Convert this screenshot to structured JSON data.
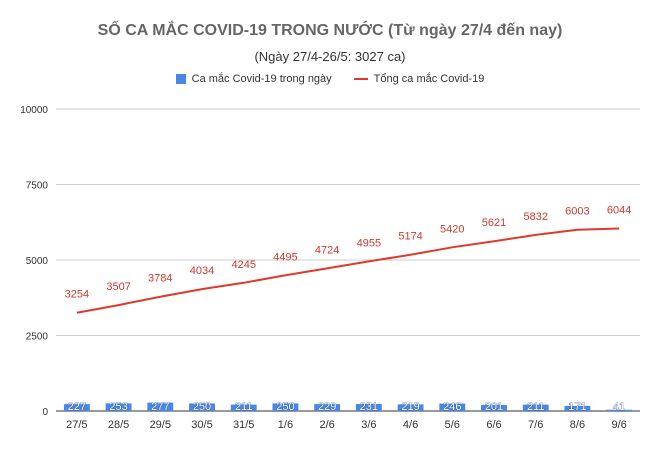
{
  "chart_data": {
    "type": "bar",
    "title": "SỐ CA MẮC COVID-19 TRONG NƯỚC (Từ ngày 27/4 đến nay)",
    "subtitle": "(Ngày 27/4-26/5: 3027 ca)",
    "categories": [
      "27/5",
      "28/5",
      "29/5",
      "30/5",
      "31/5",
      "1/6",
      "2/6",
      "3/6",
      "4/6",
      "5/6",
      "6/6",
      "7/6",
      "8/6",
      "9/6"
    ],
    "series": [
      {
        "name": "Ca mắc Covid-19 trong ngày",
        "type": "bar",
        "color": "#4a86e8",
        "values": [
          227,
          253,
          277,
          250,
          211,
          250,
          229,
          231,
          219,
          246,
          201,
          211,
          171,
          41
        ]
      },
      {
        "name": "Tổng ca mắc Covid-19",
        "type": "line",
        "color": "#e0392b",
        "values": [
          3254,
          3507,
          3784,
          4034,
          4245,
          4495,
          4724,
          4955,
          5174,
          5420,
          5621,
          5832,
          6003,
          6044
        ]
      }
    ],
    "ylim": [
      0,
      10000
    ],
    "yticks": [
      "0",
      "2500",
      "5000",
      "7500",
      "10000"
    ],
    "grid": true,
    "legend_position": "top"
  }
}
